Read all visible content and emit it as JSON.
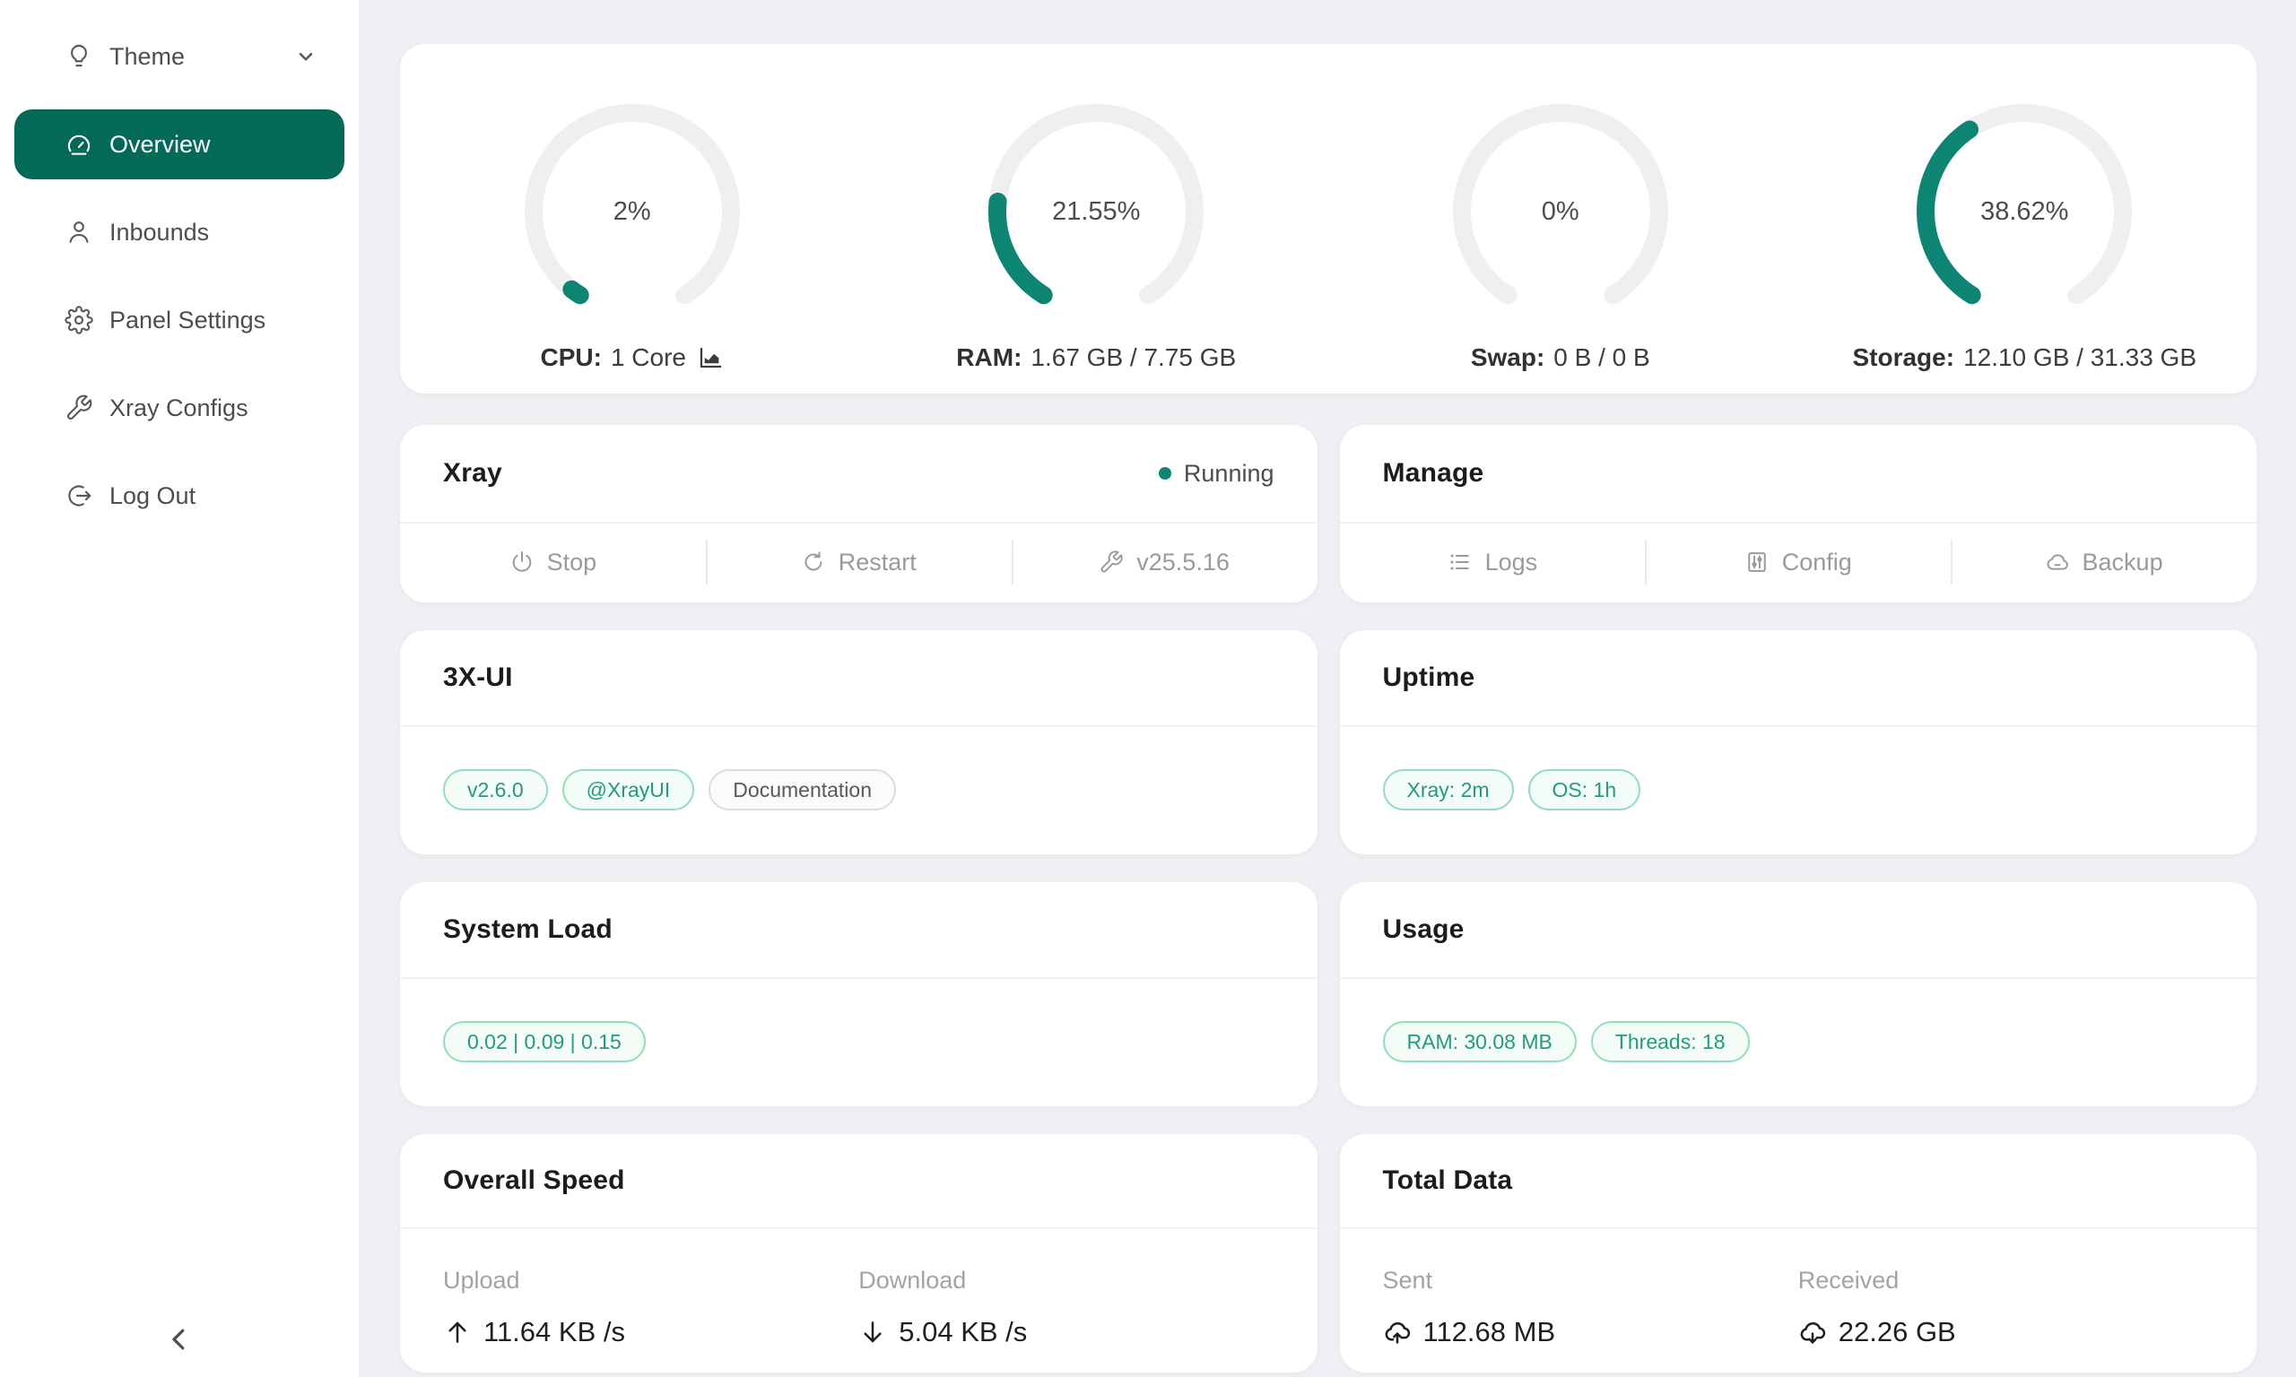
{
  "colors": {
    "sidebar_active": "#046a58",
    "accent_green": "#0d8573",
    "page_background": "#eef0f4",
    "tag_green_text": "#239d72",
    "tag_green_border": "#94deba"
  },
  "sidebar": {
    "theme": {
      "label": "Theme"
    },
    "overview": {
      "label": "Overview"
    },
    "inbounds": {
      "label": "Inbounds"
    },
    "panel_settings": {
      "label": "Panel Settings"
    },
    "xray_configs": {
      "label": "Xray Configs"
    },
    "log_out": {
      "label": "Log Out"
    }
  },
  "gauges": [
    {
      "percent": 2,
      "display": "2%",
      "label": "CPU:",
      "value": "1 Core"
    },
    {
      "percent": 21.55,
      "display": "21.55%",
      "label": "RAM:",
      "value": "1.67 GB / 7.75 GB"
    },
    {
      "percent": 0,
      "display": "0%",
      "label": "Swap:",
      "value": "0 B / 0 B"
    },
    {
      "percent": 38.62,
      "display": "38.62%",
      "label": "Storage:",
      "value": "12.10 GB / 31.33 GB"
    }
  ],
  "xray": {
    "title": "Xray",
    "status": "Running",
    "actions": {
      "stop": "Stop",
      "restart": "Restart",
      "version": "v25.5.16"
    }
  },
  "manage": {
    "title": "Manage",
    "actions": {
      "logs": "Logs",
      "config": "Config",
      "backup": "Backup"
    }
  },
  "xui": {
    "title": "3X-UI",
    "tags": {
      "version": "v2.6.0",
      "telegram": "@XrayUI",
      "docs": "Documentation"
    }
  },
  "uptime": {
    "title": "Uptime",
    "tags": {
      "xray": "Xray: 2m",
      "os": "OS: 1h"
    }
  },
  "system_load": {
    "title": "System Load",
    "tags": {
      "load": "0.02 | 0.09 | 0.15"
    }
  },
  "usage": {
    "title": "Usage",
    "tags": {
      "ram": "RAM: 30.08 MB",
      "threads": "Threads: 18"
    }
  },
  "overall_speed": {
    "title": "Overall Speed",
    "upload": {
      "label": "Upload",
      "value": "11.64 KB /s"
    },
    "download": {
      "label": "Download",
      "value": "5.04 KB /s"
    }
  },
  "total_data": {
    "title": "Total Data",
    "sent": {
      "label": "Sent",
      "value": "112.68 MB"
    },
    "received": {
      "label": "Received",
      "value": "22.26 GB"
    }
  }
}
